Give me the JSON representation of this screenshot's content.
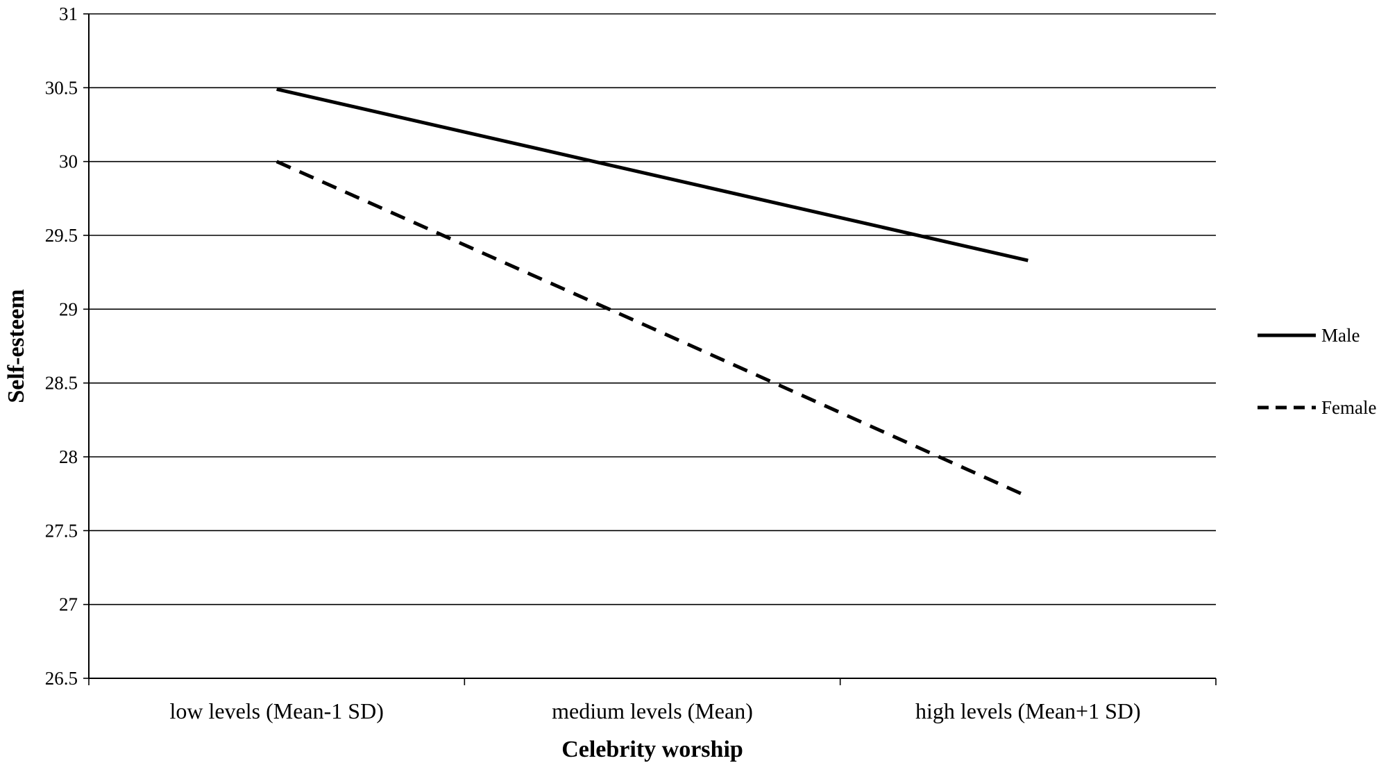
{
  "chart_data": {
    "type": "line",
    "title": "",
    "xlabel": "Celebrity worship",
    "ylabel": "Self-esteem",
    "categories": [
      "low levels (Mean-1 SD)",
      "medium levels (Mean)",
      "high levels (Mean+1 SD)"
    ],
    "ylim": [
      26.5,
      31
    ],
    "yticks": [
      "26.5",
      "27",
      "27.5",
      "28",
      "28.5",
      "29",
      "29.5",
      "30",
      "30.5",
      "31"
    ],
    "grid": true,
    "legend_position": "right",
    "series": [
      {
        "name": "Male",
        "values": [
          30.49,
          29.91,
          29.33
        ],
        "style": "solid",
        "color": "#000000"
      },
      {
        "name": "Female",
        "values": [
          30.0,
          28.87,
          27.73
        ],
        "style": "dashed",
        "color": "#000000"
      }
    ]
  }
}
